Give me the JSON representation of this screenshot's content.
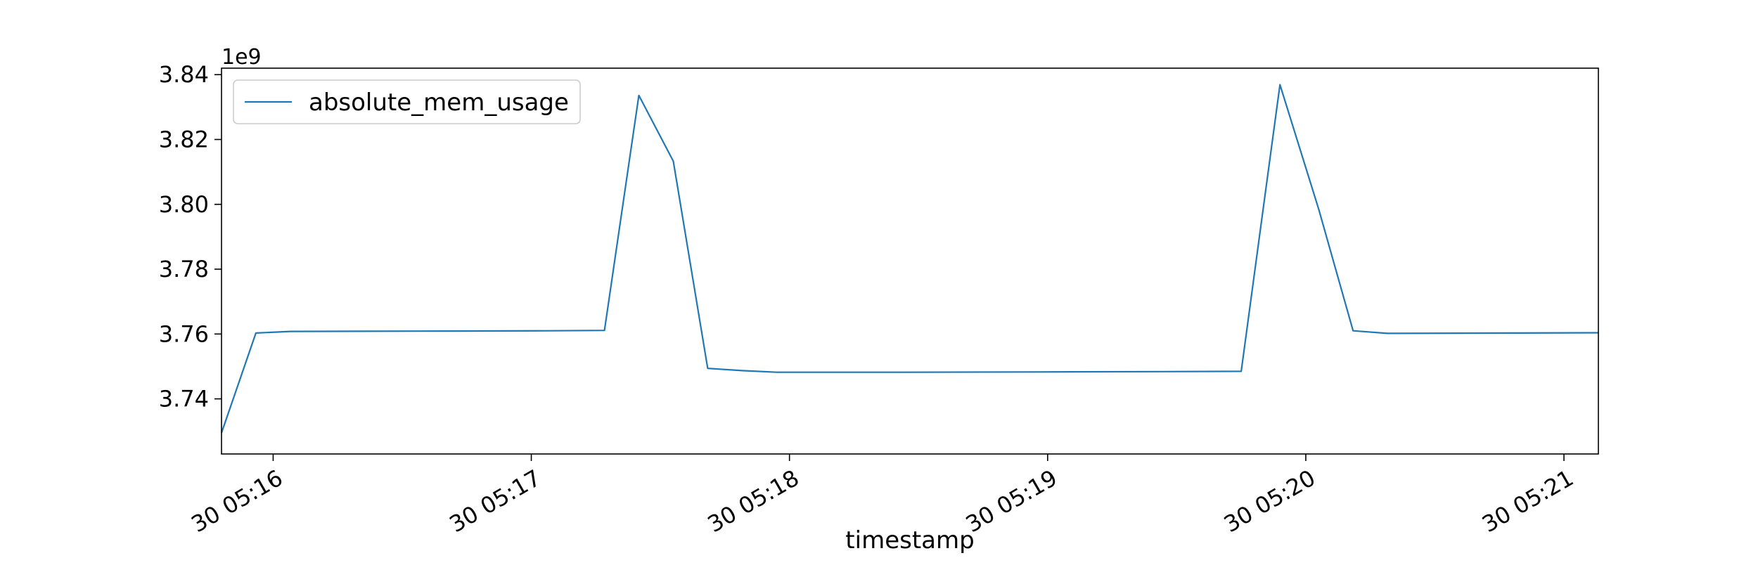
{
  "chart_data": {
    "type": "line",
    "xlabel": "timestamp",
    "ylabel": "",
    "y_offset_label": "1e9",
    "y_scale": 1000000000,
    "x_range_seconds": [
      "05:15:48",
      "05:21:08"
    ],
    "ylim": [
      3.723,
      3.842
    ],
    "y_ticks": [
      {
        "value": 3.74,
        "label": "3.74"
      },
      {
        "value": 3.76,
        "label": "3.76"
      },
      {
        "value": 3.78,
        "label": "3.78"
      },
      {
        "value": 3.8,
        "label": "3.80"
      },
      {
        "value": 3.82,
        "label": "3.82"
      },
      {
        "value": 3.84,
        "label": "3.84"
      }
    ],
    "x_ticks": [
      {
        "time": "05:16:00",
        "label": "30 05:16"
      },
      {
        "time": "05:17:00",
        "label": "30 05:17"
      },
      {
        "time": "05:18:00",
        "label": "30 05:18"
      },
      {
        "time": "05:19:00",
        "label": "30 05:19"
      },
      {
        "time": "05:20:00",
        "label": "30 05:20"
      },
      {
        "time": "05:21:00",
        "label": "30 05:21"
      }
    ],
    "legend": {
      "placement": "top-left"
    },
    "grid": false,
    "series": [
      {
        "name": "absolute_mem_usage",
        "color": "#1f77b4",
        "points": [
          {
            "t": "05:15:48",
            "y": 3.7295
          },
          {
            "t": "05:15:56",
            "y": 3.7603
          },
          {
            "t": "05:16:04",
            "y": 3.7608
          },
          {
            "t": "05:16:34",
            "y": 3.7609
          },
          {
            "t": "05:17:04",
            "y": 3.761
          },
          {
            "t": "05:17:17",
            "y": 3.7611
          },
          {
            "t": "05:17:25",
            "y": 3.8336
          },
          {
            "t": "05:17:33",
            "y": 3.8133
          },
          {
            "t": "05:17:41",
            "y": 3.7494
          },
          {
            "t": "05:17:49",
            "y": 3.7487
          },
          {
            "t": "05:17:57",
            "y": 3.7482
          },
          {
            "t": "05:18:27",
            "y": 3.7482
          },
          {
            "t": "05:18:57",
            "y": 3.7483
          },
          {
            "t": "05:19:27",
            "y": 3.7484
          },
          {
            "t": "05:19:45",
            "y": 3.7485
          },
          {
            "t": "05:19:54",
            "y": 3.8369
          },
          {
            "t": "05:20:03",
            "y": 3.7985
          },
          {
            "t": "05:20:11",
            "y": 3.761
          },
          {
            "t": "05:20:19",
            "y": 3.7602
          },
          {
            "t": "05:20:49",
            "y": 3.7603
          },
          {
            "t": "05:21:08",
            "y": 3.7604
          }
        ]
      }
    ]
  }
}
